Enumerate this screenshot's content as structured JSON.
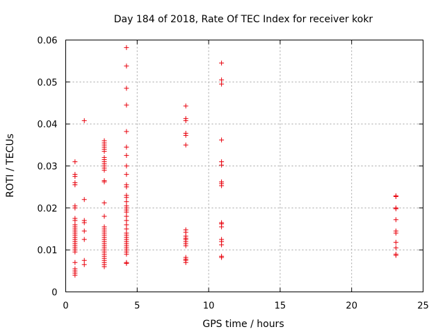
{
  "chart_data": {
    "type": "scatter",
    "title": "Day 184 of 2018, Rate Of TEC Index for receiver kokr",
    "xlabel": "GPS time / hours",
    "ylabel": "ROTI / TECUs",
    "xlim": [
      0,
      25
    ],
    "ylim": [
      0,
      0.06
    ],
    "xticks": [
      0,
      5,
      10,
      15,
      20,
      25
    ],
    "xtick_labels": [
      "0",
      "5",
      "10",
      "15",
      "20",
      "25"
    ],
    "yticks": [
      0,
      0.01,
      0.02,
      0.03,
      0.04,
      0.05,
      0.06
    ],
    "ytick_labels": [
      "0",
      "0.01",
      "0.02",
      "0.03",
      "0.04",
      "0.05",
      "0.06"
    ],
    "grid": true,
    "marker": "+",
    "marker_color": "#e8000b",
    "series": [
      {
        "name": "ROTI",
        "points": [
          [
            0.65,
            0.031
          ],
          [
            0.65,
            0.028
          ],
          [
            0.65,
            0.0275
          ],
          [
            0.65,
            0.026
          ],
          [
            0.65,
            0.0255
          ],
          [
            0.65,
            0.0205
          ],
          [
            0.65,
            0.02
          ],
          [
            0.65,
            0.0175
          ],
          [
            0.65,
            0.017
          ],
          [
            0.65,
            0.016
          ],
          [
            0.65,
            0.0155
          ],
          [
            0.65,
            0.015
          ],
          [
            0.65,
            0.0145
          ],
          [
            0.65,
            0.014
          ],
          [
            0.65,
            0.0135
          ],
          [
            0.65,
            0.013
          ],
          [
            0.65,
            0.0125
          ],
          [
            0.65,
            0.012
          ],
          [
            0.65,
            0.0115
          ],
          [
            0.65,
            0.011
          ],
          [
            0.65,
            0.0105
          ],
          [
            0.65,
            0.01
          ],
          [
            0.65,
            0.0095
          ],
          [
            0.65,
            0.007
          ],
          [
            0.65,
            0.0055
          ],
          [
            0.65,
            0.005
          ],
          [
            0.65,
            0.0045
          ],
          [
            0.65,
            0.004
          ],
          [
            1.3,
            0.0408
          ],
          [
            1.3,
            0.022
          ],
          [
            1.3,
            0.017
          ],
          [
            1.3,
            0.0165
          ],
          [
            1.3,
            0.0145
          ],
          [
            1.3,
            0.0125
          ],
          [
            1.3,
            0.0075
          ],
          [
            1.3,
            0.0065
          ],
          [
            2.7,
            0.036
          ],
          [
            2.7,
            0.0355
          ],
          [
            2.7,
            0.035
          ],
          [
            2.7,
            0.0345
          ],
          [
            2.7,
            0.034
          ],
          [
            2.7,
            0.0335
          ],
          [
            2.7,
            0.032
          ],
          [
            2.7,
            0.0315
          ],
          [
            2.7,
            0.031
          ],
          [
            2.7,
            0.0305
          ],
          [
            2.7,
            0.03
          ],
          [
            2.7,
            0.0295
          ],
          [
            2.7,
            0.029
          ],
          [
            2.7,
            0.0265
          ],
          [
            2.7,
            0.0262
          ],
          [
            2.7,
            0.0212
          ],
          [
            2.7,
            0.018
          ],
          [
            2.7,
            0.0155
          ],
          [
            2.7,
            0.015
          ],
          [
            2.7,
            0.0145
          ],
          [
            2.7,
            0.014
          ],
          [
            2.7,
            0.0135
          ],
          [
            2.7,
            0.013
          ],
          [
            2.7,
            0.0125
          ],
          [
            2.7,
            0.012
          ],
          [
            2.7,
            0.0115
          ],
          [
            2.7,
            0.011
          ],
          [
            2.7,
            0.0105
          ],
          [
            2.7,
            0.01
          ],
          [
            2.7,
            0.0095
          ],
          [
            2.7,
            0.009
          ],
          [
            2.7,
            0.0085
          ],
          [
            2.7,
            0.008
          ],
          [
            2.7,
            0.0075
          ],
          [
            2.7,
            0.007
          ],
          [
            2.7,
            0.0065
          ],
          [
            2.7,
            0.006
          ],
          [
            4.25,
            0.0582
          ],
          [
            4.25,
            0.0538
          ],
          [
            4.25,
            0.0485
          ],
          [
            4.25,
            0.0445
          ],
          [
            4.25,
            0.0382
          ],
          [
            4.25,
            0.0345
          ],
          [
            4.25,
            0.0325
          ],
          [
            4.25,
            0.03
          ],
          [
            4.25,
            0.028
          ],
          [
            4.25,
            0.0255
          ],
          [
            4.25,
            0.025
          ],
          [
            4.25,
            0.023
          ],
          [
            4.25,
            0.0225
          ],
          [
            4.25,
            0.0215
          ],
          [
            4.25,
            0.0205
          ],
          [
            4.25,
            0.02
          ],
          [
            4.25,
            0.0195
          ],
          [
            4.25,
            0.019
          ],
          [
            4.25,
            0.018
          ],
          [
            4.25,
            0.017
          ],
          [
            4.25,
            0.016
          ],
          [
            4.25,
            0.015
          ],
          [
            4.25,
            0.014
          ],
          [
            4.25,
            0.0135
          ],
          [
            4.25,
            0.013
          ],
          [
            4.25,
            0.0125
          ],
          [
            4.25,
            0.012
          ],
          [
            4.25,
            0.0115
          ],
          [
            4.25,
            0.011
          ],
          [
            4.25,
            0.0105
          ],
          [
            4.25,
            0.01
          ],
          [
            4.25,
            0.0095
          ],
          [
            4.25,
            0.009
          ],
          [
            4.25,
            0.007
          ],
          [
            4.25,
            0.0068
          ],
          [
            8.4,
            0.0443
          ],
          [
            8.4,
            0.0413
          ],
          [
            8.4,
            0.0408
          ],
          [
            8.4,
            0.0378
          ],
          [
            8.4,
            0.0373
          ],
          [
            8.4,
            0.035
          ],
          [
            8.4,
            0.0148
          ],
          [
            8.4,
            0.0142
          ],
          [
            8.4,
            0.0133
          ],
          [
            8.4,
            0.0128
          ],
          [
            8.4,
            0.0125
          ],
          [
            8.4,
            0.012
          ],
          [
            8.4,
            0.0115
          ],
          [
            8.4,
            0.011
          ],
          [
            8.4,
            0.0082
          ],
          [
            8.4,
            0.0078
          ],
          [
            8.4,
            0.0075
          ],
          [
            8.4,
            0.007
          ],
          [
            10.9,
            0.0545
          ],
          [
            10.9,
            0.0505
          ],
          [
            10.9,
            0.0495
          ],
          [
            10.9,
            0.0362
          ],
          [
            10.9,
            0.031
          ],
          [
            10.9,
            0.0302
          ],
          [
            10.9,
            0.0262
          ],
          [
            10.9,
            0.0258
          ],
          [
            10.9,
            0.0253
          ],
          [
            10.9,
            0.0165
          ],
          [
            10.9,
            0.0162
          ],
          [
            10.9,
            0.0155
          ],
          [
            10.9,
            0.0125
          ],
          [
            10.9,
            0.012
          ],
          [
            10.9,
            0.0112
          ],
          [
            10.9,
            0.0085
          ],
          [
            10.9,
            0.0082
          ],
          [
            23.1,
            0.0229
          ],
          [
            23.1,
            0.0227
          ],
          [
            23.1,
            0.02
          ],
          [
            23.1,
            0.0198
          ],
          [
            23.1,
            0.0172
          ],
          [
            23.1,
            0.0145
          ],
          [
            23.1,
            0.014
          ],
          [
            23.1,
            0.0118
          ],
          [
            23.1,
            0.0105
          ],
          [
            23.1,
            0.009
          ],
          [
            23.1,
            0.0087
          ]
        ]
      }
    ]
  }
}
